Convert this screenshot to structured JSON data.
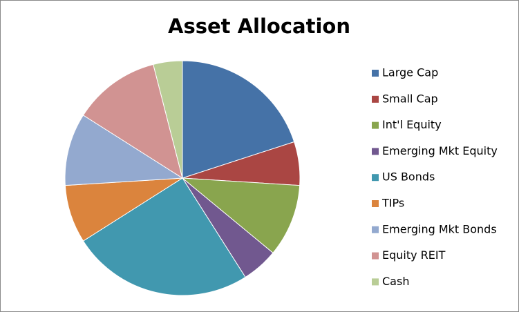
{
  "chart_data": {
    "type": "pie",
    "title": "Asset Allocation",
    "categories": [
      "Large Cap",
      "Small Cap",
      "Int'l Equity",
      "Emerging Mkt Equity",
      "US Bonds",
      "TIPs",
      "Emerging Mkt Bonds",
      "Equity REIT",
      "Cash"
    ],
    "values": [
      20,
      6,
      10,
      5,
      25,
      8,
      10,
      12,
      4
    ],
    "colors": [
      "#4572A7",
      "#AA4643",
      "#89A54E",
      "#71588F",
      "#4198AF",
      "#DB843D",
      "#93A9CF",
      "#D19392",
      "#B9CD96"
    ],
    "legend": "right"
  }
}
